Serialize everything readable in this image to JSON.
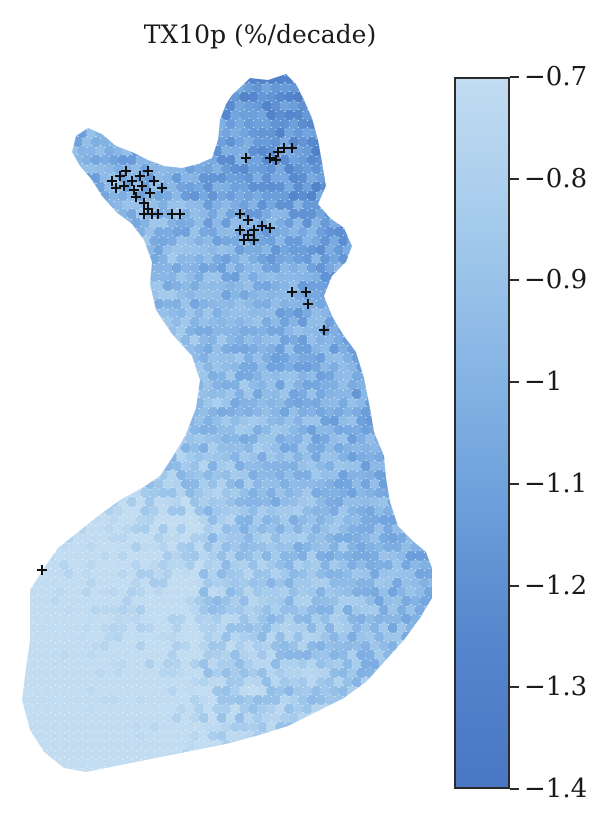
{
  "title": "TX10p (%/decade)",
  "colorbar": {
    "max": -0.7,
    "min": -1.4,
    "tick_labels": [
      "−0.7",
      "−0.8",
      "−0.9",
      "−1",
      "−1.1",
      "−1.2",
      "−1.3",
      "−1.4"
    ],
    "colors": [
      "#c2dcf1",
      "#a5cbec",
      "#88b6e5",
      "#6c9fdb",
      "#5585cc",
      "#4a77c3"
    ]
  },
  "map": {
    "region": "Finland",
    "marker_symbol": "+",
    "marker_color": "#111111",
    "cell_color_range": [
      "#4a77c3",
      "#c2dcf1"
    ]
  }
}
